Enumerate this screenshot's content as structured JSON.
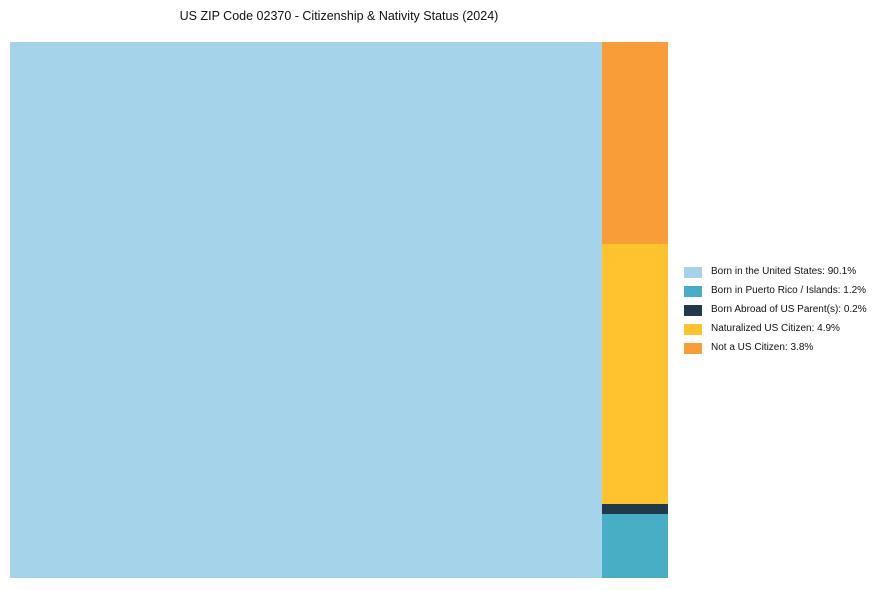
{
  "chart_data": {
    "type": "treemap",
    "title": "US ZIP Code 02370 - Citizenship & Nativity Status (2024)",
    "categories": [
      "Born in the United States",
      "Born in Puerto Rico / Islands",
      "Born Abroad of US Parent(s)",
      "Naturalized US Citizen",
      "Not a US Citizen"
    ],
    "values": [
      90.1,
      1.2,
      0.2,
      4.9,
      3.8
    ],
    "unit": "%",
    "colors": [
      "#A4D3EA",
      "#47AEC6",
      "#203A4C",
      "#FEC32E",
      "#F99D38"
    ],
    "legend_position": "right",
    "layout": {
      "main_category_index": 0,
      "right_column_top_to_bottom_indices": [
        4,
        3,
        2,
        1
      ]
    }
  },
  "legend": {
    "items": [
      {
        "label": "Born in the United States: 90.1%",
        "color": "#A4D3EA"
      },
      {
        "label": "Born in Puerto Rico / Islands: 1.2%",
        "color": "#47AEC6"
      },
      {
        "label": "Born Abroad of US Parent(s): 0.2%",
        "color": "#203A4C"
      },
      {
        "label": "Naturalized US Citizen: 4.9%",
        "color": "#FEC32E"
      },
      {
        "label": "Not a US Citizen: 3.8%",
        "color": "#F99D38"
      }
    ]
  }
}
